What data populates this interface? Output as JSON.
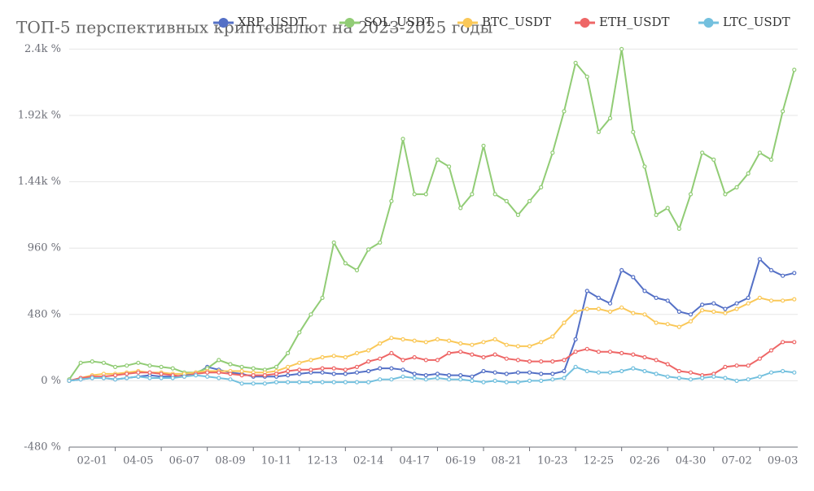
{
  "chart_data": {
    "type": "line",
    "title": "ТОП-5 перспективных криптовалют на 2023-2025 годы",
    "categories": [
      null,
      null,
      "02-01",
      null,
      null,
      null,
      "04-05",
      null,
      null,
      null,
      "06-07",
      null,
      null,
      null,
      "08-09",
      null,
      null,
      null,
      "10-11",
      null,
      null,
      null,
      "12-13",
      null,
      null,
      null,
      "02-14",
      null,
      null,
      null,
      "04-17",
      null,
      null,
      null,
      "06-19",
      null,
      null,
      null,
      "08-21",
      null,
      null,
      null,
      "10-23",
      null,
      null,
      null,
      "12-25",
      null,
      null,
      null,
      "02-26",
      null,
      null,
      null,
      "04-30",
      null,
      null,
      null,
      "07-02",
      null,
      null,
      null,
      "09-03",
      null
    ],
    "series": [
      {
        "name": "XRP_USDT",
        "color": "#5470c6",
        "values": [
          0,
          10,
          20,
          20,
          10,
          20,
          30,
          40,
          30,
          30,
          40,
          50,
          100,
          80,
          60,
          50,
          30,
          30,
          30,
          40,
          50,
          60,
          60,
          50,
          50,
          60,
          70,
          90,
          90,
          80,
          50,
          40,
          50,
          40,
          40,
          30,
          70,
          60,
          50,
          60,
          60,
          50,
          50,
          70,
          300,
          650,
          600,
          560,
          800,
          750,
          650,
          600,
          580,
          500,
          480,
          550,
          560,
          520,
          560,
          600,
          880,
          800,
          760,
          780
        ]
      },
      {
        "name": "SOL_USDT",
        "color": "#91cc75",
        "values": [
          10,
          130,
          140,
          130,
          100,
          110,
          130,
          110,
          100,
          90,
          60,
          60,
          90,
          150,
          120,
          100,
          90,
          80,
          100,
          200,
          350,
          480,
          600,
          1000,
          850,
          800,
          950,
          1000,
          1300,
          1750,
          1350,
          1350,
          1600,
          1550,
          1250,
          1350,
          1700,
          1350,
          1300,
          1200,
          1300,
          1400,
          1650,
          1950,
          2300,
          2200,
          1800,
          1900,
          2400,
          1800,
          1550,
          1200,
          1250,
          1100,
          1350,
          1650,
          1600,
          1350,
          1400,
          1500,
          1650,
          1600,
          1950,
          2250
        ]
      },
      {
        "name": "BTC_USDT",
        "color": "#fac858",
        "values": [
          0,
          20,
          40,
          50,
          50,
          60,
          70,
          60,
          60,
          50,
          50,
          60,
          70,
          70,
          70,
          70,
          60,
          60,
          70,
          100,
          130,
          150,
          170,
          180,
          170,
          200,
          220,
          270,
          310,
          300,
          290,
          280,
          300,
          290,
          270,
          260,
          280,
          300,
          260,
          250,
          250,
          280,
          320,
          420,
          500,
          520,
          520,
          500,
          530,
          490,
          480,
          420,
          410,
          390,
          430,
          510,
          500,
          490,
          520,
          560,
          600,
          580,
          580,
          590
        ]
      },
      {
        "name": "ETH_USDT",
        "color": "#ee6666",
        "values": [
          0,
          20,
          30,
          30,
          40,
          50,
          60,
          60,
          50,
          40,
          30,
          50,
          60,
          60,
          50,
          40,
          40,
          40,
          50,
          70,
          80,
          80,
          90,
          90,
          80,
          100,
          140,
          160,
          200,
          150,
          170,
          150,
          150,
          200,
          210,
          190,
          170,
          190,
          160,
          150,
          140,
          140,
          140,
          150,
          210,
          230,
          210,
          210,
          200,
          190,
          170,
          150,
          120,
          70,
          60,
          40,
          50,
          100,
          110,
          110,
          160,
          220,
          280,
          280
        ]
      },
      {
        "name": "LTC_USDT",
        "color": "#73c0de",
        "values": [
          0,
          10,
          20,
          20,
          10,
          20,
          30,
          20,
          20,
          20,
          30,
          40,
          30,
          20,
          10,
          -20,
          -20,
          -20,
          -10,
          -10,
          -10,
          -10,
          -10,
          -10,
          -10,
          -10,
          -10,
          10,
          10,
          30,
          20,
          10,
          20,
          10,
          10,
          0,
          -10,
          0,
          -10,
          -10,
          0,
          0,
          10,
          20,
          100,
          70,
          60,
          60,
          70,
          90,
          70,
          50,
          30,
          20,
          10,
          20,
          30,
          20,
          0,
          10,
          30,
          60,
          70,
          60
        ]
      }
    ],
    "ylim": [
      -480,
      2520
    ],
    "yticks": [
      {
        "value": -480,
        "label": "-480 %"
      },
      {
        "value": 0,
        "label": "0 %"
      },
      {
        "value": 480,
        "label": "480 %"
      },
      {
        "value": 960,
        "label": "960 %"
      },
      {
        "value": 1440,
        "label": "1.44k %"
      },
      {
        "value": 1920,
        "label": "1.92k %"
      },
      {
        "value": 2400,
        "label": "2.4k %"
      }
    ],
    "grid": true
  }
}
